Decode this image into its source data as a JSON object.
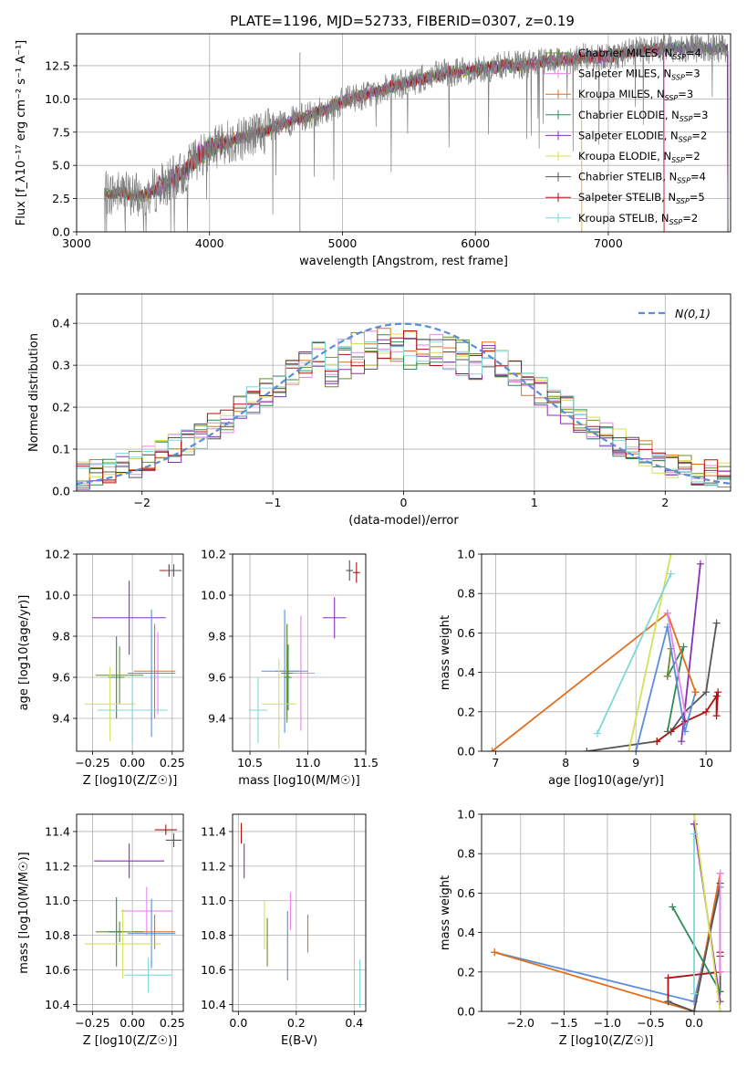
{
  "figure": {
    "title": "PLATE=1196, MJD=52733, FIBERID=0307, z=0.19"
  },
  "models": [
    {
      "name": "Chabrier MILES",
      "nssp": "4",
      "color": "#6b8e23"
    },
    {
      "name": "Salpeter MILES",
      "nssp": "3",
      "color": "#ee82ee"
    },
    {
      "name": "Kroupa MILES",
      "nssp": "3",
      "color": "#e07020"
    },
    {
      "name": "Chabrier ELODIE",
      "nssp": "3",
      "color": "#2e8b57"
    },
    {
      "name": "Salpeter ELODIE",
      "nssp": "2",
      "color": "#8b2fb5"
    },
    {
      "name": "Kroupa ELODIE",
      "nssp": "2",
      "color": "#d4e157"
    },
    {
      "name": "Chabrier STELIB",
      "nssp": "4",
      "color": "#555555"
    },
    {
      "name": "Salpeter STELIB",
      "nssp": "5",
      "color": "#b01010"
    },
    {
      "name": "Kroupa STELIB",
      "nssp": "2",
      "color": "#7ed8d8"
    }
  ],
  "chart_data": [
    {
      "id": "spectrum",
      "type": "line",
      "xlabel": "wavelength [Angstrom, rest frame]",
      "ylabel": "Flux [f_λ10⁻¹⁷ erg cm⁻² s⁻¹ A⁻¹]",
      "xlim": [
        3000,
        7920
      ],
      "ylim": [
        0,
        14.9
      ],
      "xticks": [
        3000,
        4000,
        5000,
        6000,
        7000
      ],
      "yticks": [
        0.0,
        2.5,
        5.0,
        7.5,
        10.0,
        12.5
      ],
      "legend": "right",
      "data_color": "#808080",
      "x": [
        3210,
        3300,
        3400,
        3500,
        3600,
        3700,
        3800,
        3900,
        4000,
        4200,
        4400,
        4600,
        4800,
        5000,
        5200,
        5400,
        5600,
        5800,
        6000,
        6200,
        6400,
        6600,
        6800,
        7000,
        7200,
        7400
      ],
      "y": [
        2.8,
        3.0,
        2.8,
        2.7,
        3.2,
        3.8,
        4.4,
        5.6,
        6.3,
        7.0,
        7.5,
        8.3,
        8.9,
        9.8,
        10.4,
        11.0,
        11.5,
        12.0,
        12.2,
        12.5,
        12.6,
        12.9,
        13.1,
        13.2,
        13.6,
        13.8
      ]
    },
    {
      "id": "residual-hist",
      "type": "area",
      "xlabel": "(data-model)/error",
      "ylabel": "Normed distribution",
      "xlim": [
        -2.5,
        2.5
      ],
      "ylim": [
        0,
        0.47
      ],
      "xticks": [
        -2,
        -1,
        0,
        1,
        2
      ],
      "yticks": [
        0.0,
        0.1,
        0.2,
        0.3,
        0.4
      ],
      "legend_label": "N(0,1)",
      "legend": "top-right",
      "bins": [
        -2.5,
        2.5,
        50
      ],
      "gauss_color": "#5b8dd9"
    },
    {
      "id": "age-vs-Z",
      "type": "scatter",
      "xlabel": "Z [log10(Z/Z☉)]",
      "ylabel": "age  [log10(age/yr)]",
      "xlim": [
        -0.35,
        0.32
      ],
      "ylim": [
        9.24,
        10.2
      ],
      "xticks": [
        -0.25,
        0.0,
        0.25
      ],
      "xticklabels": [
        "−0.25",
        "0.00",
        "0.25"
      ],
      "yticks": [
        9.4,
        9.6,
        9.8,
        10.0,
        10.2
      ],
      "yticklabels": [
        "9.4",
        "9.6",
        "9.8",
        "10.0",
        "10.2"
      ],
      "points": [
        {
          "color": "#b01010",
          "x": 0.23,
          "y": 10.12,
          "xerr": 0.06,
          "yerr": 0.03
        },
        {
          "color": "#555555",
          "x": 0.26,
          "y": 10.12,
          "xerr": 0.05,
          "yerr": 0.03
        },
        {
          "color": "#8b2fb5",
          "x": -0.02,
          "y": 9.89,
          "xerr": 0.23,
          "yerr": 0.18
        },
        {
          "color": "#ee82ee",
          "x": 0.16,
          "y": 9.62,
          "xerr": 0.11,
          "yerr": 0.2
        },
        {
          "color": "#e07020",
          "x": 0.14,
          "y": 9.63,
          "xerr": 0.13,
          "yerr": 0.23
        },
        {
          "color": "#5b8dd9",
          "x": 0.12,
          "y": 9.62,
          "xerr": 0.15,
          "yerr": 0.31
        },
        {
          "color": "#6b8e23",
          "x": -0.08,
          "y": 9.61,
          "xerr": 0.15,
          "yerr": 0.14
        },
        {
          "color": "#2e8b57",
          "x": -0.1,
          "y": 9.6,
          "xerr": 0.05,
          "yerr": 0.2
        },
        {
          "color": "#d4e157",
          "x": -0.14,
          "y": 9.47,
          "xerr": 0.16,
          "yerr": 0.18
        },
        {
          "color": "#7ed8d8",
          "x": 0.0,
          "y": 9.44,
          "xerr": 0.22,
          "yerr": 0.16
        }
      ]
    },
    {
      "id": "age-vs-mass",
      "type": "scatter",
      "xlabel": "mass [log10(M/M☉)]",
      "ylabel": "",
      "xlim": [
        10.35,
        11.5
      ],
      "ylim": [
        9.24,
        10.2
      ],
      "xticks": [
        10.5,
        11.0,
        11.5
      ],
      "xticklabels": [
        "10.5",
        "11.0",
        "11.5"
      ],
      "yticks": [
        9.4,
        9.6,
        9.8,
        10.0,
        10.2
      ],
      "yticklabels": [
        "9.4",
        "9.6",
        "9.8",
        "10.0",
        "10.2"
      ],
      "points": [
        {
          "color": "#555555",
          "x": 11.36,
          "y": 10.12,
          "xerr": 0.03,
          "yerr": 0.05
        },
        {
          "color": "#b01010",
          "x": 11.42,
          "y": 10.11,
          "xerr": 0.03,
          "yerr": 0.05
        },
        {
          "color": "#8b2fb5",
          "x": 11.23,
          "y": 9.89,
          "xerr": 0.1,
          "yerr": 0.1
        },
        {
          "color": "#ee82ee",
          "x": 10.94,
          "y": 9.62,
          "xerr": 0.12,
          "yerr": 0.28
        },
        {
          "color": "#e07020",
          "x": 10.82,
          "y": 9.63,
          "xerr": 0.1,
          "yerr": 0.23
        },
        {
          "color": "#5b8dd9",
          "x": 10.8,
          "y": 9.63,
          "xerr": 0.2,
          "yerr": 0.3
        },
        {
          "color": "#6b8e23",
          "x": 10.82,
          "y": 9.62,
          "xerr": 0.05,
          "yerr": 0.24
        },
        {
          "color": "#2e8b57",
          "x": 10.83,
          "y": 9.6,
          "xerr": 0.03,
          "yerr": 0.16
        },
        {
          "color": "#d4e157",
          "x": 10.75,
          "y": 9.47,
          "xerr": 0.15,
          "yerr": 0.22
        },
        {
          "color": "#7ed8d8",
          "x": 10.57,
          "y": 9.44,
          "xerr": 0.08,
          "yerr": 0.16
        }
      ]
    },
    {
      "id": "weight-vs-age",
      "type": "line",
      "xlabel": "age  [log10(age/yr)]",
      "ylabel": "mass weight",
      "xlim": [
        6.8,
        10.35
      ],
      "ylim": [
        0,
        1.0
      ],
      "xticks": [
        7,
        8,
        9,
        10
      ],
      "xticklabels": [
        "7",
        "8",
        "9",
        "10"
      ],
      "yticks": [
        0.0,
        0.2,
        0.4,
        0.6,
        0.8,
        1.0
      ],
      "yticklabels": [
        "0.0",
        "0.2",
        "0.4",
        "0.6",
        "0.8",
        "1.0"
      ],
      "series": [
        {
          "color": "#555555",
          "x": [
            8.3,
            9.3,
            9.5,
            9.7,
            10.0,
            10.15
          ],
          "y": [
            0.0,
            0.05,
            0.1,
            0.2,
            0.3,
            0.65
          ]
        },
        {
          "color": "#b01010",
          "x": [
            9.3,
            9.5,
            9.7,
            10.0,
            10.15,
            10.15,
            10.17
          ],
          "y": [
            0.05,
            0.1,
            0.15,
            0.2,
            0.28,
            0.18,
            0.3
          ]
        },
        {
          "color": "#8b2fb5",
          "x": [
            9.65,
            9.92
          ],
          "y": [
            0.05,
            0.95
          ]
        },
        {
          "color": "#2e8b57",
          "x": [
            9.45,
            9.68,
            9.45
          ],
          "y": [
            0.1,
            0.53,
            0.38
          ]
        },
        {
          "color": "#6b8e23",
          "x": [
            9.45,
            9.5
          ],
          "y": [
            0.38,
            0.52
          ]
        },
        {
          "color": "#5b8dd9",
          "x": [
            9.0,
            9.45,
            9.7,
            9.85
          ],
          "y": [
            0.0,
            0.63,
            0.1,
            0.3
          ]
        },
        {
          "color": "#e07020",
          "x": [
            6.95,
            9.45,
            9.85
          ],
          "y": [
            0.0,
            0.7,
            0.3
          ]
        },
        {
          "color": "#ee82ee",
          "x": [
            9.45,
            9.7
          ],
          "y": [
            0.7,
            0.2
          ]
        },
        {
          "color": "#d4e157",
          "x": [
            8.9,
            9.5
          ],
          "y": [
            0.0,
            1.0
          ]
        },
        {
          "color": "#7ed8d8",
          "x": [
            8.45,
            9.5
          ],
          "y": [
            0.09,
            0.9
          ]
        }
      ]
    },
    {
      "id": "mass-vs-Z",
      "type": "scatter",
      "xlabel": "Z [log10(Z/Z☉)]",
      "ylabel": "mass [log10(M/M☉)]",
      "xlim": [
        -0.35,
        0.32
      ],
      "ylim": [
        10.36,
        11.5
      ],
      "xticks": [
        -0.25,
        0.0,
        0.25
      ],
      "xticklabels": [
        "−0.25",
        "0.00",
        "0.25"
      ],
      "yticks": [
        10.4,
        10.6,
        10.8,
        11.0,
        11.2,
        11.4
      ],
      "yticklabels": [
        "10.4",
        "10.6",
        "10.8",
        "11.0",
        "11.2",
        "11.4"
      ],
      "points": [
        {
          "color": "#b01010",
          "x": 0.21,
          "y": 11.41,
          "xerr": 0.07,
          "yerr": 0.03
        },
        {
          "color": "#555555",
          "x": 0.26,
          "y": 11.35,
          "xerr": 0.05,
          "yerr": 0.04
        },
        {
          "color": "#8b2fb5",
          "x": -0.02,
          "y": 11.23,
          "xerr": 0.22,
          "yerr": 0.1
        },
        {
          "color": "#ee82ee",
          "x": 0.09,
          "y": 10.94,
          "xerr": 0.16,
          "yerr": 0.14
        },
        {
          "color": "#e07020",
          "x": 0.14,
          "y": 10.82,
          "xerr": 0.13,
          "yerr": 0.1
        },
        {
          "color": "#5b8dd9",
          "x": 0.12,
          "y": 10.81,
          "xerr": 0.15,
          "yerr": 0.2
        },
        {
          "color": "#6b8e23",
          "x": -0.08,
          "y": 10.82,
          "xerr": 0.15,
          "yerr": 0.06
        },
        {
          "color": "#2e8b57",
          "x": -0.1,
          "y": 10.82,
          "xerr": 0.05,
          "yerr": 0.2
        },
        {
          "color": "#d4e157",
          "x": -0.06,
          "y": 10.75,
          "xerr": 0.24,
          "yerr": 0.2
        },
        {
          "color": "#7ed8d8",
          "x": 0.1,
          "y": 10.57,
          "xerr": 0.15,
          "yerr": 0.1
        }
      ]
    },
    {
      "id": "mass-vs-ebv",
      "type": "scatter",
      "xlabel": "E(B-V)",
      "ylabel": "",
      "xlim": [
        -0.02,
        0.44
      ],
      "ylim": [
        10.36,
        11.5
      ],
      "xticks": [
        0.0,
        0.2,
        0.4
      ],
      "xticklabels": [
        "0.0",
        "0.2",
        "0.4"
      ],
      "yticks": [
        10.4,
        10.6,
        10.8,
        11.0,
        11.2,
        11.4
      ],
      "yticklabels": [
        "10.4",
        "10.6",
        "10.8",
        "11.0",
        "11.2",
        "11.4"
      ],
      "points": [
        {
          "color": "#b01010",
          "x": 0.01,
          "y": 11.39,
          "xerr": 0.0,
          "yerr": 0.06
        },
        {
          "color": "#8b2fb5",
          "x": 0.02,
          "y": 11.23,
          "xerr": 0.0,
          "yerr": 0.1
        },
        {
          "color": "#ee82ee",
          "x": 0.18,
          "y": 10.94,
          "xerr": 0.0,
          "yerr": 0.11
        },
        {
          "color": "#e07020",
          "x": 0.24,
          "y": 10.81,
          "xerr": 0.0,
          "yerr": 0.11
        },
        {
          "color": "#d4e157",
          "x": 0.09,
          "y": 10.86,
          "xerr": 0.0,
          "yerr": 0.14
        },
        {
          "color": "#6b8e23",
          "x": 0.1,
          "y": 10.76,
          "xerr": 0.0,
          "yerr": 0.14
        },
        {
          "color": "#5b8dd9",
          "x": 0.17,
          "y": 10.74,
          "xerr": 0.0,
          "yerr": 0.2
        },
        {
          "color": "#7ed8d8",
          "x": 0.42,
          "y": 10.52,
          "xerr": 0.0,
          "yerr": 0.14
        }
      ]
    },
    {
      "id": "weight-vs-Z",
      "type": "line",
      "xlabel": "Z [log10(Z/Z☉)]",
      "ylabel": "mass weight",
      "xlim": [
        -2.45,
        0.42
      ],
      "ylim": [
        0,
        1.0
      ],
      "xticks": [
        -2.0,
        -1.5,
        -1.0,
        -0.5,
        0.0
      ],
      "xticklabels": [
        "−2.0",
        "−1.5",
        "−1.0",
        "−0.5",
        "0.0"
      ],
      "yticks": [
        0.0,
        0.2,
        0.4,
        0.6,
        0.8,
        1.0
      ],
      "yticklabels": [
        "0.0",
        "0.2",
        "0.4",
        "0.6",
        "0.8",
        "1.0"
      ],
      "series": [
        {
          "color": "#5b8dd9",
          "x": [
            -2.3,
            0.0,
            0.3
          ],
          "y": [
            0.3,
            0.05,
            0.63
          ]
        },
        {
          "color": "#e07020",
          "x": [
            -2.3,
            0.0,
            0.3
          ],
          "y": [
            0.3,
            0.0,
            0.7
          ]
        },
        {
          "color": "#b01010",
          "x": [
            -0.3,
            -0.3,
            0.3,
            0.3,
            0.3
          ],
          "y": [
            0.05,
            0.17,
            0.2,
            0.3,
            0.28
          ]
        },
        {
          "color": "#555555",
          "x": [
            -0.3,
            0.0,
            0.3,
            0.3
          ],
          "y": [
            0.05,
            0.0,
            0.65,
            0.1
          ]
        },
        {
          "color": "#8b2fb5",
          "x": [
            0.0,
            0.3,
            0.0
          ],
          "y": [
            0.95,
            0.05,
            0.95
          ]
        },
        {
          "color": "#2e8b57",
          "x": [
            -0.25,
            0.3
          ],
          "y": [
            0.53,
            0.1
          ]
        },
        {
          "color": "#d4e157",
          "x": [
            0.0,
            0.3
          ],
          "y": [
            1.0,
            0.0
          ]
        },
        {
          "color": "#7ed8d8",
          "x": [
            0.0,
            0.0
          ],
          "y": [
            0.9,
            0.09
          ]
        },
        {
          "color": "#ee82ee",
          "x": [
            0.3,
            0.3
          ],
          "y": [
            0.7,
            0.2
          ]
        }
      ]
    }
  ]
}
